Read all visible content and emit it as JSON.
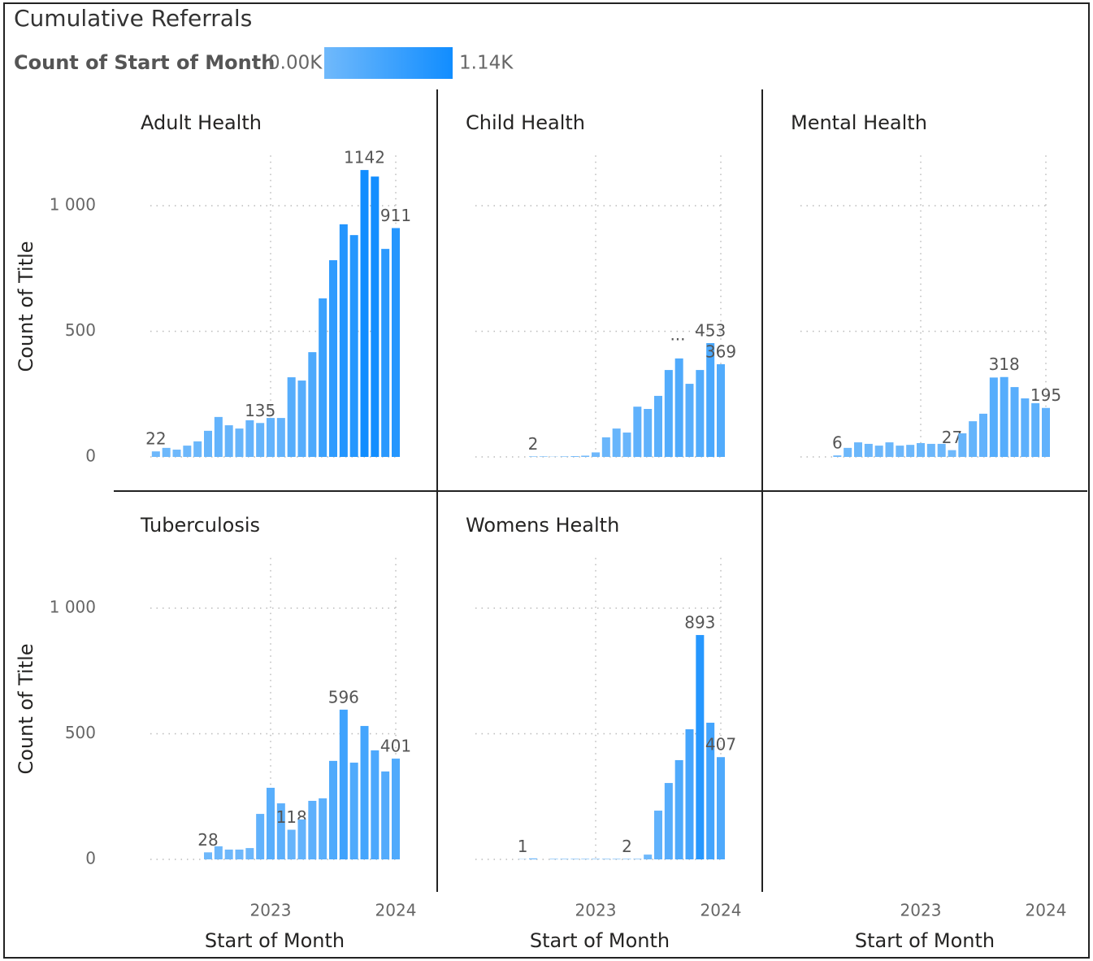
{
  "chart_data": {
    "type": "bar",
    "title": "Cumulative Referrals",
    "legend": {
      "title": "Count of Start of Month",
      "min": {
        "value": 0,
        "label": "0.00K"
      },
      "max": {
        "value": 1140,
        "label": "1.14K"
      },
      "min_color": "#70b9fb",
      "max_color": "#118dff"
    },
    "y_label": "Count of Title",
    "x_label": "Start of Month",
    "ylim": [
      0,
      1200
    ],
    "yticks": [
      0,
      500,
      {
        "value": 1000,
        "label": "1 000"
      }
    ],
    "xlim": [
      "2022-01",
      "2024-01"
    ],
    "xticks": [
      {
        "value": "2023-01",
        "label": "2023"
      },
      {
        "value": "2024-01",
        "label": "2024"
      }
    ],
    "grid": true,
    "panels": [
      {
        "title": "Adult Health",
        "x": [
          "2022-02",
          "2022-03",
          "2022-04",
          "2022-05",
          "2022-06",
          "2022-07",
          "2022-08",
          "2022-09",
          "2022-10",
          "2022-11",
          "2022-12",
          "2023-01",
          "2023-02",
          "2023-03",
          "2023-04",
          "2023-05",
          "2023-06",
          "2023-07",
          "2023-08",
          "2023-09",
          "2023-10",
          "2023-11",
          "2023-12",
          "2024-01"
        ],
        "values": [
          22,
          36,
          29,
          45,
          62,
          104,
          159,
          126,
          113,
          146,
          135,
          155,
          155,
          317,
          304,
          417,
          631,
          783,
          926,
          883,
          1142,
          1116,
          828,
          911
        ],
        "value_labels": [
          "22",
          null,
          null,
          null,
          null,
          null,
          null,
          null,
          null,
          null,
          "135",
          null,
          null,
          null,
          null,
          null,
          null,
          null,
          null,
          null,
          "1142",
          null,
          null,
          "911"
        ]
      },
      {
        "title": "Child Health",
        "x": [
          "2022-07",
          "2022-08",
          "2022-09",
          "2022-10",
          "2022-11",
          "2022-12",
          "2023-01",
          "2023-02",
          "2023-03",
          "2023-04",
          "2023-05",
          "2023-06",
          "2023-07",
          "2023-08",
          "2023-09",
          "2023-10",
          "2023-11",
          "2023-12",
          "2024-01"
        ],
        "values": [
          2,
          2,
          1,
          2,
          3,
          5,
          18,
          78,
          113,
          97,
          200,
          191,
          243,
          346,
          392,
          291,
          346,
          453,
          369
        ],
        "value_labels": [
          "2",
          null,
          null,
          null,
          null,
          null,
          null,
          null,
          null,
          null,
          null,
          null,
          null,
          null,
          null,
          null,
          null,
          "453",
          "369"
        ],
        "annotation": "···"
      },
      {
        "title": "Mental Health",
        "x": [
          "2022-05",
          "2022-06",
          "2022-07",
          "2022-08",
          "2022-09",
          "2022-10",
          "2022-11",
          "2022-12",
          "2023-01",
          "2023-02",
          "2023-03",
          "2023-04",
          "2023-05",
          "2023-06",
          "2023-07",
          "2023-08",
          "2023-09",
          "2023-10",
          "2023-11",
          "2023-12",
          "2024-01"
        ],
        "values": [
          6,
          36,
          58,
          52,
          45,
          58,
          45,
          48,
          55,
          52,
          52,
          27,
          94,
          142,
          172,
          316,
          318,
          278,
          233,
          214,
          195
        ],
        "value_labels": [
          "6",
          null,
          null,
          null,
          null,
          null,
          null,
          null,
          null,
          null,
          null,
          "27",
          null,
          null,
          null,
          null,
          "318",
          null,
          null,
          null,
          "195"
        ]
      },
      {
        "title": "Tuberculosis",
        "x": [
          "2022-07",
          "2022-08",
          "2022-09",
          "2022-10",
          "2022-11",
          "2022-12",
          "2023-01",
          "2023-02",
          "2023-03",
          "2023-04",
          "2023-05",
          "2023-06",
          "2023-07",
          "2023-08",
          "2023-09",
          "2023-10",
          "2023-11",
          "2023-12",
          "2024-01"
        ],
        "values": [
          28,
          52,
          39,
          39,
          45,
          181,
          285,
          223,
          118,
          159,
          233,
          243,
          392,
          596,
          385,
          531,
          434,
          350,
          401
        ],
        "value_labels": [
          "28",
          null,
          null,
          null,
          null,
          null,
          null,
          null,
          "118",
          null,
          null,
          null,
          null,
          "596",
          null,
          null,
          null,
          null,
          "401"
        ]
      },
      {
        "title": "Womens Health",
        "x": [
          "2022-06",
          "2022-07",
          "2022-08",
          "2022-09",
          "2022-10",
          "2022-11",
          "2022-12",
          "2023-01",
          "2023-02",
          "2023-03",
          "2023-04",
          "2023-05",
          "2023-06",
          "2023-07",
          "2023-08",
          "2023-09",
          "2023-10",
          "2023-11",
          "2023-12",
          "2024-01"
        ],
        "values": [
          1,
          4,
          0,
          2,
          2,
          2,
          2,
          2,
          2,
          2,
          2,
          2,
          19,
          194,
          304,
          395,
          518,
          893,
          544,
          407
        ],
        "value_labels": [
          "1",
          null,
          null,
          null,
          null,
          null,
          null,
          null,
          null,
          null,
          "2",
          null,
          null,
          null,
          null,
          null,
          null,
          "893",
          null,
          "407"
        ]
      }
    ]
  }
}
